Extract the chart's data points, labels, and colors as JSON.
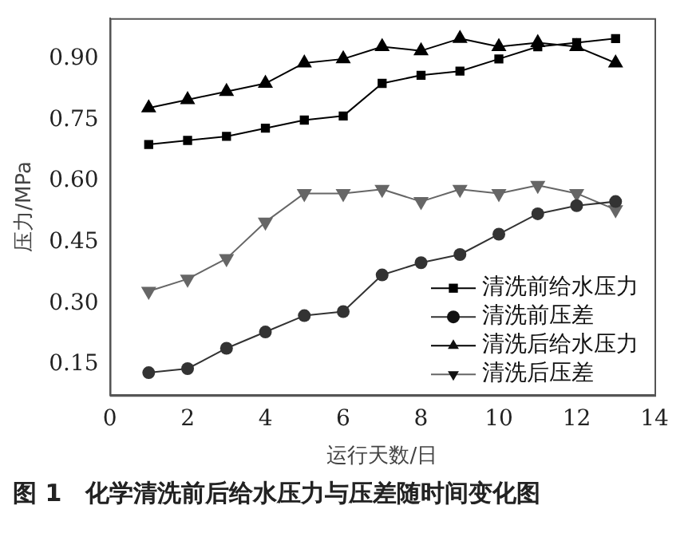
{
  "chart_data": {
    "type": "line",
    "xlabel": "运行天数/日",
    "ylabel": "压力/MPa",
    "annotations": [
      "图 1　化学清洗前后给水压力与压差随时间变化图"
    ],
    "x": [
      1,
      2,
      3,
      4,
      5,
      6,
      7,
      8,
      9,
      10,
      11,
      12,
      13
    ],
    "xlim": [
      0,
      14
    ],
    "xticks": [
      0,
      2,
      4,
      6,
      8,
      10,
      12,
      14
    ],
    "ylim": [
      0.075,
      1.0
    ],
    "yticks": [
      0.15,
      {
        "value": 0.3,
        "label": "0.30"
      },
      0.45,
      {
        "value": 0.6,
        "label": "0.60"
      },
      0.75,
      {
        "value": 0.9,
        "label": "0.90"
      }
    ],
    "grid": false,
    "legend": "bottom right",
    "line_style": "solid",
    "series": [
      {
        "name": "清洗前给水压力",
        "color": "#000000",
        "marker": "square",
        "values": [
          0.69,
          0.7,
          0.71,
          0.73,
          0.75,
          0.76,
          0.84,
          0.86,
          0.87,
          0.9,
          0.93,
          0.94,
          0.95
        ]
      },
      {
        "name": "清洗前压差",
        "color": "#333333",
        "marker": "circle",
        "values": [
          0.13,
          0.14,
          0.19,
          0.23,
          0.27,
          0.28,
          0.37,
          0.4,
          0.42,
          0.47,
          0.52,
          0.54,
          0.55
        ]
      },
      {
        "name": "清洗后给水压力",
        "color": "#000000",
        "marker": "triangle",
        "values": [
          0.78,
          0.8,
          0.82,
          0.84,
          0.89,
          0.9,
          0.93,
          0.92,
          0.95,
          0.93,
          0.94,
          0.93,
          0.89
        ]
      },
      {
        "name": "清洗后压差",
        "color": "#666666",
        "marker": "triangle-down",
        "values": [
          0.33,
          0.36,
          0.41,
          0.5,
          0.57,
          0.57,
          0.58,
          0.55,
          0.58,
          0.57,
          0.59,
          0.57,
          0.53
        ]
      }
    ]
  }
}
